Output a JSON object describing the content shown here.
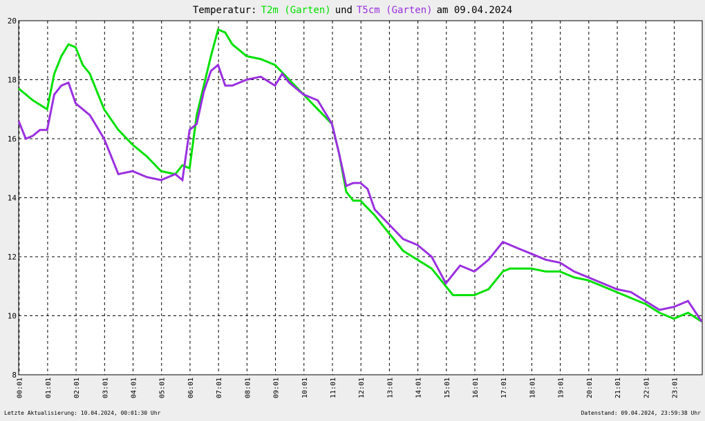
{
  "chart_data": {
    "type": "line",
    "title_parts": [
      "Temperatur:",
      "und",
      "am 09.04.2024"
    ],
    "footer_left": "Letzte Aktualisierung: 10.04.2024, 00:01:30 Uhr",
    "footer_right": "Datenstand: 09.04.2024, 23:59:38 Uhr",
    "xlim": [
      0,
      1440
    ],
    "xticks": [
      {
        "value": 1,
        "label": "00:01"
      },
      {
        "value": 61,
        "label": "01:01"
      },
      {
        "value": 121,
        "label": "02:01"
      },
      {
        "value": 181,
        "label": "03:01"
      },
      {
        "value": 241,
        "label": "04:01"
      },
      {
        "value": 301,
        "label": "05:01"
      },
      {
        "value": 361,
        "label": "06:01"
      },
      {
        "value": 421,
        "label": "07:01"
      },
      {
        "value": 481,
        "label": "08:01"
      },
      {
        "value": 541,
        "label": "09:01"
      },
      {
        "value": 601,
        "label": "10:01"
      },
      {
        "value": 661,
        "label": "11:01"
      },
      {
        "value": 721,
        "label": "12:01"
      },
      {
        "value": 781,
        "label": "13:01"
      },
      {
        "value": 841,
        "label": "14:01"
      },
      {
        "value": 901,
        "label": "15:01"
      },
      {
        "value": 961,
        "label": "16:01"
      },
      {
        "value": 1021,
        "label": "17:01"
      },
      {
        "value": 1081,
        "label": "18:01"
      },
      {
        "value": 1141,
        "label": "19:01"
      },
      {
        "value": 1201,
        "label": "20:01"
      },
      {
        "value": 1261,
        "label": "21:01"
      },
      {
        "value": 1321,
        "label": "22:01"
      },
      {
        "value": 1381,
        "label": "23:01"
      }
    ],
    "ylim": [
      8,
      20
    ],
    "yticks": [
      8,
      10,
      12,
      14,
      16,
      18,
      20
    ],
    "grid": true,
    "series": [
      {
        "name": "T2m (Garten)",
        "color": "#00e000",
        "x": [
          0,
          30,
          60,
          75,
          90,
          105,
          120,
          135,
          150,
          165,
          180,
          210,
          240,
          270,
          300,
          330,
          345,
          360,
          375,
          390,
          405,
          420,
          435,
          450,
          480,
          510,
          540,
          570,
          600,
          630,
          660,
          675,
          690,
          705,
          720,
          750,
          780,
          810,
          840,
          870,
          900,
          915,
          930,
          960,
          990,
          1020,
          1035,
          1050,
          1080,
          1110,
          1140,
          1170,
          1200,
          1230,
          1260,
          1290,
          1320,
          1350,
          1380,
          1410,
          1439
        ],
        "values": [
          17.7,
          17.3,
          17.0,
          18.2,
          18.8,
          19.2,
          19.1,
          18.5,
          18.2,
          17.6,
          17.0,
          16.3,
          15.8,
          15.4,
          14.9,
          14.8,
          15.1,
          15.0,
          16.8,
          17.8,
          18.8,
          19.7,
          19.6,
          19.2,
          18.8,
          18.7,
          18.5,
          18.0,
          17.5,
          17.0,
          16.5,
          15.5,
          14.2,
          13.9,
          13.9,
          13.4,
          12.8,
          12.2,
          11.9,
          11.6,
          11.0,
          10.7,
          10.7,
          10.7,
          10.9,
          11.5,
          11.6,
          11.6,
          11.6,
          11.5,
          11.5,
          11.3,
          11.2,
          11.0,
          10.8,
          10.6,
          10.4,
          10.1,
          9.9,
          10.1,
          9.8
        ]
      },
      {
        "name": "T5cm (Garten)",
        "color": "#9a30e0",
        "x": [
          0,
          15,
          30,
          45,
          60,
          75,
          90,
          105,
          120,
          150,
          180,
          195,
          210,
          240,
          270,
          300,
          330,
          345,
          360,
          375,
          390,
          405,
          420,
          435,
          450,
          480,
          510,
          540,
          555,
          570,
          600,
          630,
          660,
          675,
          690,
          705,
          720,
          735,
          750,
          780,
          810,
          840,
          870,
          900,
          915,
          930,
          960,
          990,
          1020,
          1035,
          1050,
          1080,
          1110,
          1140,
          1170,
          1200,
          1230,
          1260,
          1290,
          1320,
          1350,
          1380,
          1410,
          1439
        ],
        "values": [
          16.6,
          16.0,
          16.1,
          16.3,
          16.3,
          17.5,
          17.8,
          17.9,
          17.2,
          16.8,
          16.0,
          15.4,
          14.8,
          14.9,
          14.7,
          14.6,
          14.8,
          14.6,
          16.3,
          16.5,
          17.6,
          18.3,
          18.5,
          17.8,
          17.8,
          18.0,
          18.1,
          17.8,
          18.2,
          17.9,
          17.5,
          17.3,
          16.5,
          15.5,
          14.4,
          14.5,
          14.5,
          14.3,
          13.6,
          13.1,
          12.6,
          12.4,
          12.0,
          11.1,
          11.4,
          11.7,
          11.5,
          11.9,
          12.5,
          12.4,
          12.3,
          12.1,
          11.9,
          11.8,
          11.5,
          11.3,
          11.1,
          10.9,
          10.8,
          10.5,
          10.2,
          10.3,
          10.5,
          9.8
        ]
      }
    ]
  }
}
